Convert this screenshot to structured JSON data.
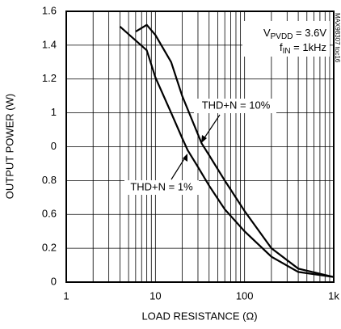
{
  "chart_data": {
    "type": "line",
    "x_label": "LOAD RESISTANCE (Ω)",
    "y_label": "OUTPUT POWER (W)",
    "x_scale": "log",
    "xlim": [
      1,
      1000
    ],
    "xticks": [
      1,
      10,
      100,
      {
        "value": 1000,
        "label": "1k"
      }
    ],
    "ylim": [
      0,
      1.6
    ],
    "yticks": [
      "0",
      0.2,
      0.6,
      0.8,
      "0",
      1.0,
      1.2,
      1.4,
      1.6
    ],
    "grid": true,
    "conditions": {
      "v": [
        "V",
        "PVDD",
        " = 3.6V"
      ],
      "f": [
        "f",
        "IN",
        " = 1kHz"
      ]
    },
    "watermark": "MAX98307 toc16",
    "series": [
      {
        "name": "THD+N = 10%",
        "color": "#000000",
        "x": [
          6,
          8,
          10,
          15,
          20,
          33,
          40,
          60,
          100,
          200,
          400,
          1000
        ],
        "values": [
          1.48,
          1.52,
          1.46,
          1.3,
          1.1,
          0.82,
          0.75,
          0.6,
          0.42,
          0.2,
          0.08,
          0.03
        ]
      },
      {
        "name": "THD+N = 1%",
        "color": "#000000",
        "x": [
          4,
          8,
          10,
          15,
          20,
          23,
          30,
          40,
          60,
          100,
          200,
          400,
          1000
        ],
        "values": [
          1.51,
          1.37,
          1.21,
          1.0,
          0.85,
          0.78,
          0.68,
          0.57,
          0.43,
          0.3,
          0.15,
          0.06,
          0.03
        ]
      }
    ]
  }
}
